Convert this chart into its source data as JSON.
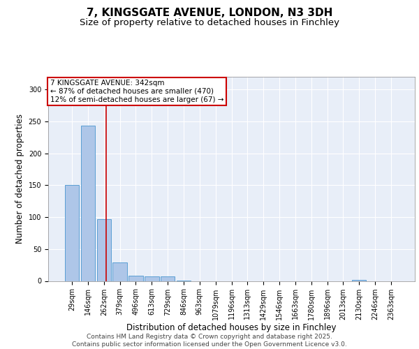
{
  "title1": "7, KINGSGATE AVENUE, LONDON, N3 3DH",
  "title2": "Size of property relative to detached houses in Finchley",
  "bar_values": [
    150,
    243,
    97,
    29,
    8,
    7,
    7,
    1,
    0,
    0,
    0,
    0,
    0,
    0,
    0,
    0,
    0,
    0,
    2,
    0,
    0
  ],
  "categories": [
    "29sqm",
    "146sqm",
    "262sqm",
    "379sqm",
    "496sqm",
    "613sqm",
    "729sqm",
    "846sqm",
    "963sqm",
    "1079sqm",
    "1196sqm",
    "1313sqm",
    "1429sqm",
    "1546sqm",
    "1663sqm",
    "1780sqm",
    "1896sqm",
    "2013sqm",
    "2130sqm",
    "2246sqm",
    "2363sqm"
  ],
  "bar_color": "#aec6e8",
  "bar_edge_color": "#5a9fd4",
  "ylabel": "Number of detached properties",
  "xlabel": "Distribution of detached houses by size in Finchley",
  "ylim": [
    0,
    320
  ],
  "yticks": [
    0,
    50,
    100,
    150,
    200,
    250,
    300
  ],
  "red_line_x": 2.13,
  "annotation_line1": "7 KINGSGATE AVENUE: 342sqm",
  "annotation_line2": "← 87% of detached houses are smaller (470)",
  "annotation_line3": "12% of semi-detached houses are larger (67) →",
  "annotation_box_color": "#ffffff",
  "annotation_edge_color": "#cc0000",
  "footer_text": "Contains HM Land Registry data © Crown copyright and database right 2025.\nContains public sector information licensed under the Open Government Licence v3.0.",
  "background_color": "#e8eef8",
  "grid_color": "#ffffff",
  "title_fontsize": 11,
  "subtitle_fontsize": 9.5,
  "tick_fontsize": 7,
  "label_fontsize": 8.5,
  "footer_fontsize": 6.5,
  "annotation_fontsize": 7.5
}
